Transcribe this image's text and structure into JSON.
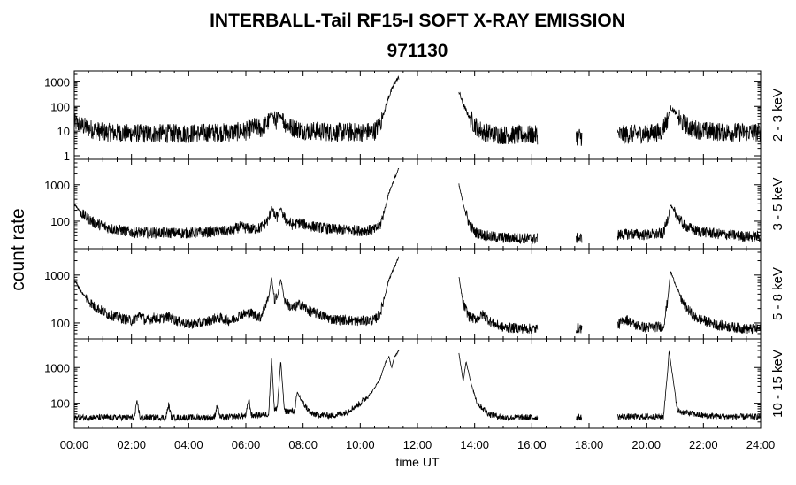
{
  "chart_data": {
    "type": "line",
    "title": "INTERBALL-Tail RF15-I SOFT X-RAY EMISSION",
    "subtitle": "971130",
    "xlabel": "time UT",
    "ylabel": "count rate",
    "xlim": [
      0,
      24
    ],
    "x_ticks": [
      "00:00",
      "02:00",
      "04:00",
      "06:00",
      "08:00",
      "10:00",
      "12:00",
      "14:00",
      "16:00",
      "18:00",
      "20:00",
      "22:00",
      "24:00"
    ],
    "y_scale": "log",
    "grid": false,
    "data_segments_hours": [
      [
        0,
        11.35
      ],
      [
        13.45,
        16.2
      ],
      [
        17.55,
        17.75
      ],
      [
        19.0,
        24.0
      ]
    ],
    "panels": [
      {
        "band": "2 - 3 keV",
        "ylim": [
          1,
          2000
        ],
        "y_ticks": [
          {
            "v": 1,
            "label": "1"
          },
          {
            "v": 10,
            "label": "10"
          },
          {
            "v": 100,
            "label": "100"
          },
          {
            "v": 1000,
            "label": "1000"
          }
        ],
        "baseline": 8,
        "noise": 0.9,
        "series": [
          [
            0,
            22
          ],
          [
            0.5,
            13
          ],
          [
            1.0,
            9
          ],
          [
            2.0,
            8
          ],
          [
            4.0,
            8
          ],
          [
            5.5,
            9
          ],
          [
            6.0,
            10
          ],
          [
            6.3,
            15
          ],
          [
            6.55,
            12
          ],
          [
            6.8,
            25
          ],
          [
            6.9,
            60
          ],
          [
            6.98,
            30
          ],
          [
            7.1,
            25
          ],
          [
            7.22,
            45
          ],
          [
            7.35,
            22
          ],
          [
            7.6,
            14
          ],
          [
            8.0,
            11
          ],
          [
            9.0,
            9
          ],
          [
            10.0,
            9
          ],
          [
            10.5,
            10
          ],
          [
            10.7,
            20
          ],
          [
            10.85,
            70
          ],
          [
            11.0,
            250
          ],
          [
            11.2,
            900
          ],
          [
            11.35,
            1500
          ],
          [
            13.45,
            400
          ],
          [
            13.6,
            120
          ],
          [
            13.8,
            40
          ],
          [
            14.0,
            18
          ],
          [
            14.3,
            9
          ],
          [
            15.0,
            7
          ],
          [
            16.2,
            7
          ],
          [
            17.55,
            6
          ],
          [
            17.75,
            6
          ],
          [
            19.0,
            7
          ],
          [
            20.0,
            8
          ],
          [
            20.5,
            9
          ],
          [
            20.75,
            30
          ],
          [
            20.85,
            90
          ],
          [
            21.0,
            60
          ],
          [
            21.2,
            25
          ],
          [
            21.5,
            14
          ],
          [
            22.0,
            10
          ],
          [
            23.0,
            9
          ],
          [
            24.0,
            9
          ]
        ]
      },
      {
        "band": "3 - 5 keV",
        "ylim": [
          22,
          4000
        ],
        "y_ticks": [
          {
            "v": 100,
            "label": "100"
          },
          {
            "v": 1000,
            "label": "1000"
          }
        ],
        "baseline": 45,
        "noise": 0.35,
        "series": [
          [
            0,
            300
          ],
          [
            0.3,
            150
          ],
          [
            0.7,
            90
          ],
          [
            1.2,
            65
          ],
          [
            2.0,
            50
          ],
          [
            3.0,
            48
          ],
          [
            4.0,
            47
          ],
          [
            5.0,
            52
          ],
          [
            5.5,
            55
          ],
          [
            5.8,
            70
          ],
          [
            6.2,
            60
          ],
          [
            6.5,
            65
          ],
          [
            6.8,
            110
          ],
          [
            6.9,
            260
          ],
          [
            7.0,
            140
          ],
          [
            7.1,
            130
          ],
          [
            7.22,
            230
          ],
          [
            7.35,
            120
          ],
          [
            7.6,
            80
          ],
          [
            7.9,
            90
          ],
          [
            8.2,
            75
          ],
          [
            9.0,
            60
          ],
          [
            10.0,
            55
          ],
          [
            10.5,
            58
          ],
          [
            10.7,
            80
          ],
          [
            10.85,
            200
          ],
          [
            11.0,
            600
          ],
          [
            11.2,
            1500
          ],
          [
            11.35,
            2800
          ],
          [
            13.45,
            1000
          ],
          [
            13.6,
            300
          ],
          [
            13.8,
            90
          ],
          [
            14.0,
            50
          ],
          [
            14.5,
            38
          ],
          [
            15.0,
            35
          ],
          [
            16.2,
            33
          ],
          [
            17.55,
            34
          ],
          [
            17.75,
            34
          ],
          [
            19.0,
            42
          ],
          [
            19.5,
            45
          ],
          [
            20.0,
            42
          ],
          [
            20.6,
            46
          ],
          [
            20.75,
            120
          ],
          [
            20.85,
            280
          ],
          [
            21.0,
            170
          ],
          [
            21.3,
            80
          ],
          [
            21.7,
            55
          ],
          [
            22.5,
            45
          ],
          [
            23.5,
            38
          ],
          [
            24.0,
            38
          ]
        ]
      },
      {
        "band": "5 - 8 keV",
        "ylim": [
          55,
          3000
        ],
        "y_ticks": [
          {
            "v": 100,
            "label": "100"
          },
          {
            "v": 1000,
            "label": "1000"
          }
        ],
        "baseline": 85,
        "noise": 0.25,
        "series": [
          [
            0,
            800
          ],
          [
            0.3,
            400
          ],
          [
            0.7,
            220
          ],
          [
            1.2,
            150
          ],
          [
            2.0,
            110
          ],
          [
            2.3,
            150
          ],
          [
            2.5,
            110
          ],
          [
            2.8,
            130
          ],
          [
            3.0,
            120
          ],
          [
            3.3,
            135
          ],
          [
            3.6,
            110
          ],
          [
            4.0,
            95
          ],
          [
            4.5,
            100
          ],
          [
            5.0,
            130
          ],
          [
            5.5,
            110
          ],
          [
            5.8,
            150
          ],
          [
            6.2,
            160
          ],
          [
            6.5,
            130
          ],
          [
            6.8,
            350
          ],
          [
            6.9,
            900
          ],
          [
            7.0,
            300
          ],
          [
            7.1,
            350
          ],
          [
            7.22,
            850
          ],
          [
            7.35,
            300
          ],
          [
            7.6,
            200
          ],
          [
            7.9,
            250
          ],
          [
            8.2,
            180
          ],
          [
            9.0,
            120
          ],
          [
            10.0,
            110
          ],
          [
            10.5,
            115
          ],
          [
            10.7,
            160
          ],
          [
            10.85,
            350
          ],
          [
            11.0,
            800
          ],
          [
            11.2,
            1500
          ],
          [
            11.35,
            2400
          ],
          [
            13.45,
            900
          ],
          [
            13.6,
            250
          ],
          [
            13.8,
            140
          ],
          [
            14.0,
            120
          ],
          [
            14.3,
            150
          ],
          [
            14.6,
            100
          ],
          [
            15.0,
            80
          ],
          [
            16.2,
            75
          ],
          [
            17.55,
            78
          ],
          [
            17.75,
            78
          ],
          [
            19.0,
            90
          ],
          [
            19.3,
            120
          ],
          [
            19.6,
            90
          ],
          [
            20.0,
            80
          ],
          [
            20.6,
            85
          ],
          [
            20.75,
            300
          ],
          [
            20.85,
            1200
          ],
          [
            21.0,
            700
          ],
          [
            21.3,
            250
          ],
          [
            21.7,
            130
          ],
          [
            22.5,
            90
          ],
          [
            23.5,
            75
          ],
          [
            24.0,
            75
          ]
        ]
      },
      {
        "band": "10 - 15 keV",
        "ylim": [
          25,
          5000
        ],
        "y_ticks": [
          {
            "v": 100,
            "label": "100"
          },
          {
            "v": 1000,
            "label": "1000"
          }
        ],
        "baseline": 40,
        "noise": 0.2,
        "series": [
          [
            0,
            40
          ],
          [
            2.1,
            40
          ],
          [
            2.2,
            110
          ],
          [
            2.3,
            40
          ],
          [
            3.2,
            40
          ],
          [
            3.3,
            90
          ],
          [
            3.4,
            40
          ],
          [
            4.9,
            40
          ],
          [
            5.0,
            90
          ],
          [
            5.1,
            40
          ],
          [
            6.0,
            45
          ],
          [
            6.1,
            130
          ],
          [
            6.2,
            45
          ],
          [
            6.8,
            50
          ],
          [
            6.9,
            2000
          ],
          [
            7.0,
            60
          ],
          [
            7.1,
            80
          ],
          [
            7.22,
            1500
          ],
          [
            7.35,
            60
          ],
          [
            7.7,
            60
          ],
          [
            7.8,
            200
          ],
          [
            8.0,
            100
          ],
          [
            8.3,
            50
          ],
          [
            9.0,
            45
          ],
          [
            9.5,
            55
          ],
          [
            10.0,
            100
          ],
          [
            10.4,
            200
          ],
          [
            10.7,
            500
          ],
          [
            10.9,
            1500
          ],
          [
            11.0,
            2000
          ],
          [
            11.1,
            1000
          ],
          [
            11.2,
            2000
          ],
          [
            11.35,
            3000
          ],
          [
            13.45,
            2500
          ],
          [
            13.6,
            400
          ],
          [
            13.7,
            1500
          ],
          [
            13.9,
            300
          ],
          [
            14.1,
            100
          ],
          [
            14.5,
            50
          ],
          [
            15.0,
            40
          ],
          [
            16.2,
            40
          ],
          [
            17.55,
            40
          ],
          [
            17.75,
            40
          ],
          [
            19.0,
            42
          ],
          [
            20.0,
            42
          ],
          [
            20.6,
            42
          ],
          [
            20.75,
            800
          ],
          [
            20.8,
            3000
          ],
          [
            20.95,
            400
          ],
          [
            21.1,
            60
          ],
          [
            22.0,
            45
          ],
          [
            23.0,
            42
          ],
          [
            24.0,
            42
          ]
        ]
      }
    ]
  }
}
